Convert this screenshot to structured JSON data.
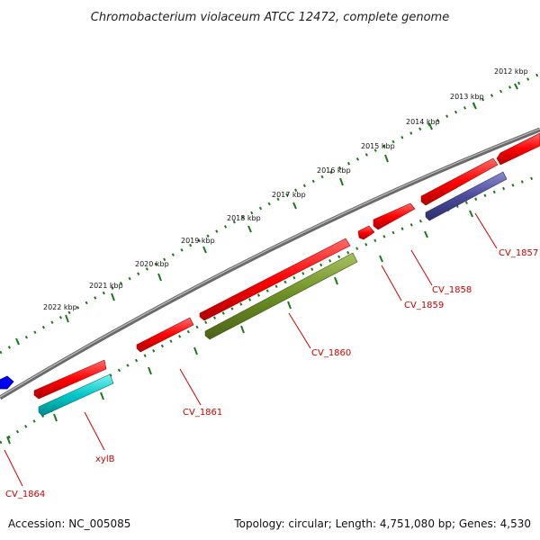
{
  "title": "Chromobacterium violaceum ATCC 12472, complete genome",
  "ruler": {
    "ticks": [
      "2012 kbp",
      "2013 kbp",
      "2014 kbp",
      "2015 kbp",
      "2016 kbp",
      "2017 kbp",
      "2018 kbp",
      "2019 kbp",
      "2020 kbp",
      "2021 kbp",
      "2022 kbp"
    ]
  },
  "genes": [
    {
      "name": "CV_1857",
      "label": "CV_1857"
    },
    {
      "name": "CV_1858",
      "label": "CV_1858"
    },
    {
      "name": "CV_1859",
      "label": "CV_1859"
    },
    {
      "name": "CV_1860",
      "label": "CV_1860"
    },
    {
      "name": "CV_1861",
      "label": "CV_1861"
    },
    {
      "name": "xylB",
      "label": "xylB"
    },
    {
      "name": "CV_1864",
      "label": "CV_1864"
    }
  ],
  "colors": {
    "forward": "#ff0000",
    "cyan": "#00c8c8",
    "olive": "#6b8e23",
    "slate": "#4b4b9b",
    "blue": "#0000ff",
    "backbone": "#808080",
    "ruler": "#1a7a1a",
    "label": "#cc0000"
  },
  "footer": {
    "accession": "Accession: NC_005085",
    "stats": "Topology: circular; Length: 4,751,080 bp; Genes: 4,530"
  }
}
